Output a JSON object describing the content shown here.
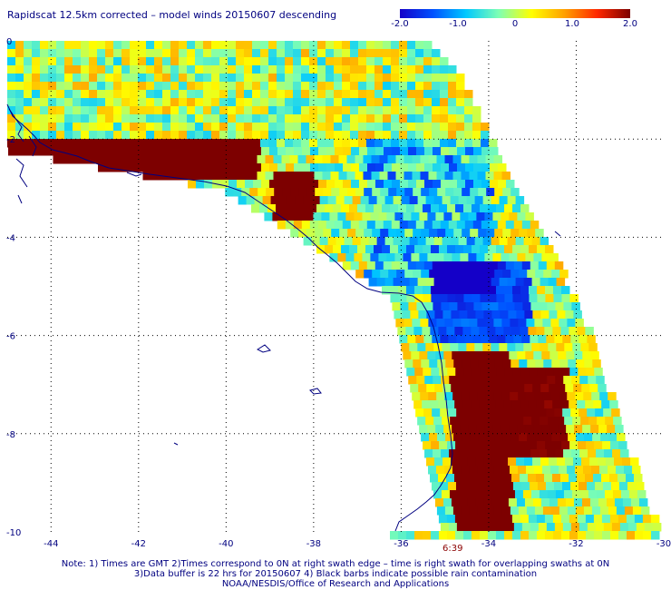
{
  "title": "Rapidscat 12.5km corrected – model winds 20150607 descending",
  "colorbar": {
    "ticks": [
      "-2.0",
      "-1.0",
      "0",
      "1.0",
      "2.0"
    ],
    "tick_values": [
      -2.0,
      -1.0,
      0,
      1.0,
      2.0
    ],
    "range": [
      -2.0,
      2.0
    ],
    "colors": [
      "#1400c8",
      "#0050ff",
      "#00c8ff",
      "#7dffb4",
      "#ffff00",
      "#ffa000",
      "#ff2800",
      "#7d0000"
    ]
  },
  "axes": {
    "x_ticks": [
      "-44",
      "-42",
      "-40",
      "-38",
      "-36",
      "-34",
      "-32",
      "-30"
    ],
    "x_values": [
      -44,
      -42,
      -40,
      -38,
      -36,
      -34,
      -32,
      -30
    ],
    "y_ticks": [
      "0",
      "-2",
      "-4",
      "-6",
      "-8",
      "-10"
    ],
    "y_values": [
      0,
      -2,
      -4,
      -6,
      -8,
      -10
    ],
    "lon_range": [
      -45,
      -30
    ],
    "lat_range": [
      -10,
      0
    ],
    "grid": true
  },
  "time_label": "6:39",
  "notes": [
    "Note: 1) Times are GMT 2)Times correspond to 0N at right swath edge – time is right swath for overlapping swaths at 0N",
    "3)Data buffer is 22 hrs for 20150607 4) Black barbs indicate possible rain contamination",
    "NOAA/NESDIS/Office of Research and Applications"
  ],
  "colors": {
    "text": "#000080",
    "coastline": "#000080",
    "grid": "#000000",
    "time": "#8b0000"
  }
}
